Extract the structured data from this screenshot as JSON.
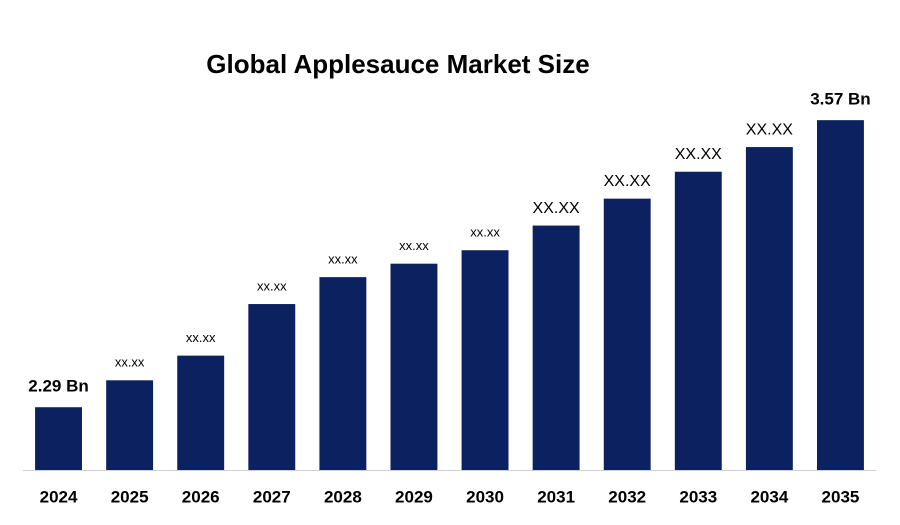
{
  "chart_data": {
    "type": "bar",
    "title": "Global Applesauce Market Size",
    "categories": [
      "2024",
      "2025",
      "2026",
      "2027",
      "2028",
      "2029",
      "2030",
      "2031",
      "2032",
      "2033",
      "2034",
      "2035"
    ],
    "values": [
      2.29,
      2.41,
      2.52,
      2.75,
      2.87,
      2.93,
      2.99,
      3.1,
      3.22,
      3.34,
      3.45,
      3.57
    ],
    "value_labels": [
      "2.29 Bn",
      "xx.xx",
      "xx.xx",
      "xx.xx",
      "xx.xx",
      "xx.xx",
      "xx.xx",
      "XX.XX",
      "XX.XX",
      "XX.XX",
      "XX.XX",
      "3.57 Bn"
    ],
    "color": "#0c2260",
    "ylim": [
      2.01,
      3.7
    ]
  }
}
